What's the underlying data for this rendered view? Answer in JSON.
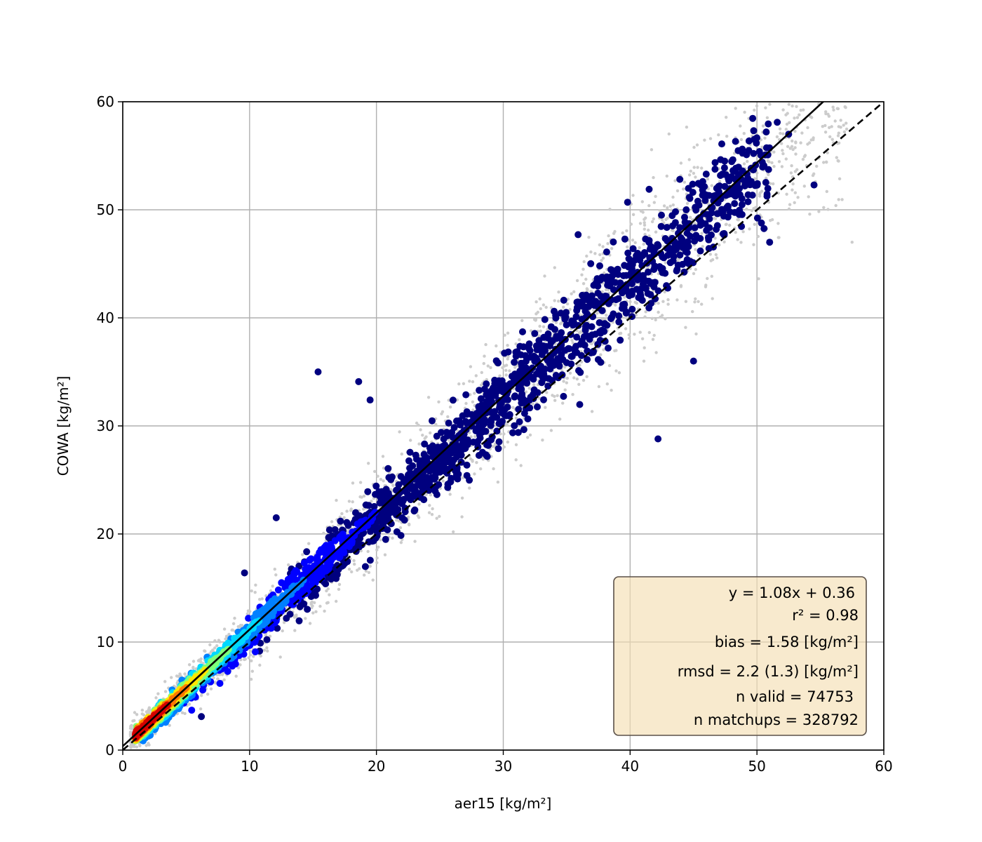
{
  "chart_data": {
    "type": "scatter",
    "xlabel": "aer15 [kg/m²]",
    "ylabel": "COWA [kg/m²]",
    "xlim": [
      0,
      60
    ],
    "ylim": [
      0,
      60
    ],
    "x_ticks": [
      "0",
      "10",
      "20",
      "30",
      "40",
      "50",
      "60"
    ],
    "y_ticks": [
      "0",
      "10",
      "20",
      "30",
      "40",
      "50",
      "60"
    ],
    "grid": true,
    "colors": {
      "all_matchups": "#cccccc",
      "density_colormap": [
        "#00007f",
        "#0000ff",
        "#0080ff",
        "#00d8ff",
        "#7dff7a",
        "#ffe600",
        "#ff7700",
        "#d40000"
      ],
      "fit_line": "#000000",
      "identity_line": "#000000",
      "stats_box_fill": "#f5deb3",
      "stats_box_edge": "#5a5048"
    },
    "fit": {
      "slope": 1.08,
      "intercept": 0.36,
      "style": "solid"
    },
    "identity": {
      "slope": 1.0,
      "intercept": 0.0,
      "style": "dashed"
    },
    "series": [
      {
        "role": "all matchups (grey)",
        "x": [
          1.5,
          3.0,
          4.5,
          6.0,
          7.5,
          9.0,
          10.5,
          12.0,
          14.0,
          16.0,
          18.0,
          20.0,
          22.0,
          24.0,
          26.0,
          28.0,
          30.0,
          32.0,
          34.0,
          36.0,
          38.0,
          40.0,
          42.0,
          44.0,
          46.0,
          48.0,
          50.0,
          52.0,
          54.0,
          56.0,
          57.5
        ],
        "y": [
          1.8,
          3.5,
          5.3,
          6.9,
          8.6,
          10.2,
          11.8,
          13.4,
          15.6,
          17.6,
          19.6,
          21.8,
          23.8,
          25.9,
          28.0,
          30.2,
          32.3,
          34.4,
          36.4,
          38.6,
          40.6,
          42.8,
          44.9,
          47.0,
          49.2,
          51.3,
          53.4,
          55.5,
          57.6,
          59.5,
          47.0
        ]
      },
      {
        "role": "valid matchups (colored by density)",
        "x": [
          15.4,
          18.6,
          19.5,
          12.1,
          9.6,
          6.2,
          42.2,
          54.5,
          45.0,
          51.0,
          39.8,
          35.9,
          51.6,
          52.5,
          41.5
        ],
        "y": [
          35.0,
          34.1,
          32.4,
          21.5,
          16.4,
          3.1,
          28.8,
          52.3,
          36.0,
          47.0,
          50.7,
          47.7,
          58.1,
          57.0,
          51.9
        ]
      }
    ],
    "stats": {
      "equation": "y = 1.08x + 0.36",
      "r2": "r² = 0.98",
      "bias": "bias = 1.58 [kg/m²]",
      "rmsd": "rmsd = 2.2 (1.3) [kg/m²]",
      "n_valid": "n valid = 74753",
      "n_matchups": "n matchups = 328792"
    },
    "legend_position": "bottom-right"
  }
}
